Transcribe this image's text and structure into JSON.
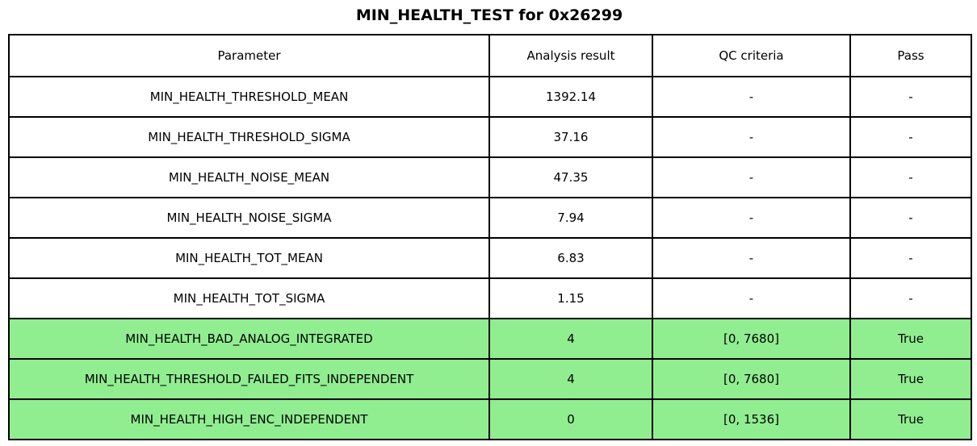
{
  "title": "MIN_HEALTH_TEST for 0x26299",
  "colors": {
    "pass_green": "#90ee90",
    "border": "#000000",
    "background": "#ffffff",
    "text": "#000000"
  },
  "chart_data": {
    "type": "table",
    "title": "MIN_HEALTH_TEST for 0x26299",
    "columns": [
      "Parameter",
      "Analysis result",
      "QC criteria",
      "Pass"
    ],
    "rows": [
      {
        "parameter": "MIN_HEALTH_THRESHOLD_MEAN",
        "result": "1392.14",
        "qc": "-",
        "pass": "-",
        "highlighted": false
      },
      {
        "parameter": "MIN_HEALTH_THRESHOLD_SIGMA",
        "result": "37.16",
        "qc": "-",
        "pass": "-",
        "highlighted": false
      },
      {
        "parameter": "MIN_HEALTH_NOISE_MEAN",
        "result": "47.35",
        "qc": "-",
        "pass": "-",
        "highlighted": false
      },
      {
        "parameter": "MIN_HEALTH_NOISE_SIGMA",
        "result": "7.94",
        "qc": "-",
        "pass": "-",
        "highlighted": false
      },
      {
        "parameter": "MIN_HEALTH_TOT_MEAN",
        "result": "6.83",
        "qc": "-",
        "pass": "-",
        "highlighted": false
      },
      {
        "parameter": "MIN_HEALTH_TOT_SIGMA",
        "result": "1.15",
        "qc": "-",
        "pass": "-",
        "highlighted": false
      },
      {
        "parameter": "MIN_HEALTH_BAD_ANALOG_INTEGRATED",
        "result": "4",
        "qc": "[0, 7680]",
        "pass": "True",
        "highlighted": true
      },
      {
        "parameter": "MIN_HEALTH_THRESHOLD_FAILED_FITS_INDEPENDENT",
        "result": "4",
        "qc": "[0, 7680]",
        "pass": "True",
        "highlighted": true
      },
      {
        "parameter": "MIN_HEALTH_HIGH_ENC_INDEPENDENT",
        "result": "0",
        "qc": "[0, 1536]",
        "pass": "True",
        "highlighted": true
      }
    ],
    "layout_hints": {
      "highlight_color": "#90ee90",
      "highlighted_rows": [
        6,
        7,
        8
      ],
      "grid": true
    }
  }
}
